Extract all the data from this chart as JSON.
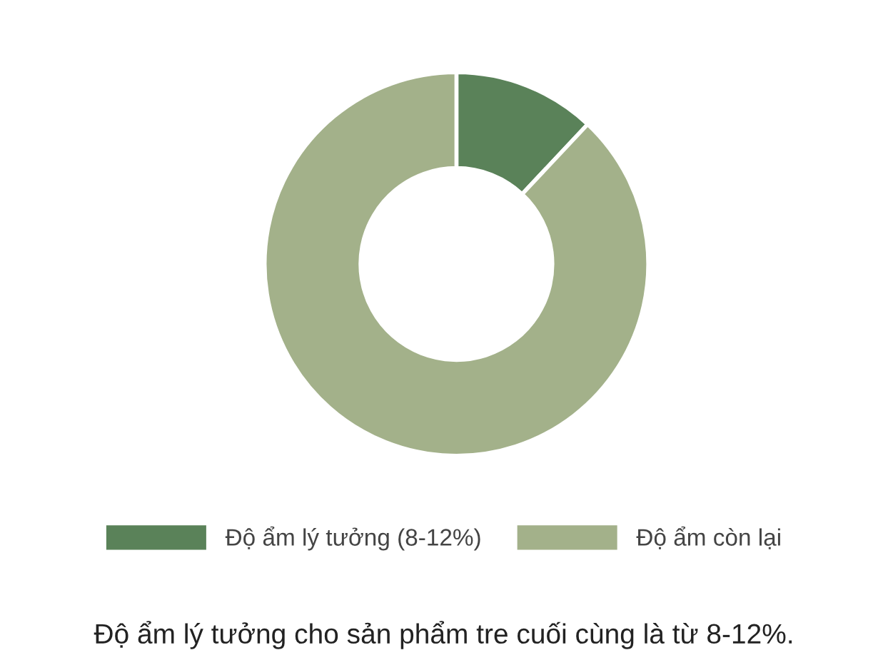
{
  "chart_data": {
    "type": "donut",
    "categories": [
      "Độ ẩm lý tưởng (8-12%)",
      "Độ ẩm còn lại"
    ],
    "values": [
      12,
      88
    ],
    "colors": [
      "#5a8259",
      "#a3b18a"
    ],
    "legend": "bottom",
    "annotations": [
      "Độ ẩm lý tưởng cho sản phẩm tre cuối cùng là từ 8-12%."
    ]
  }
}
